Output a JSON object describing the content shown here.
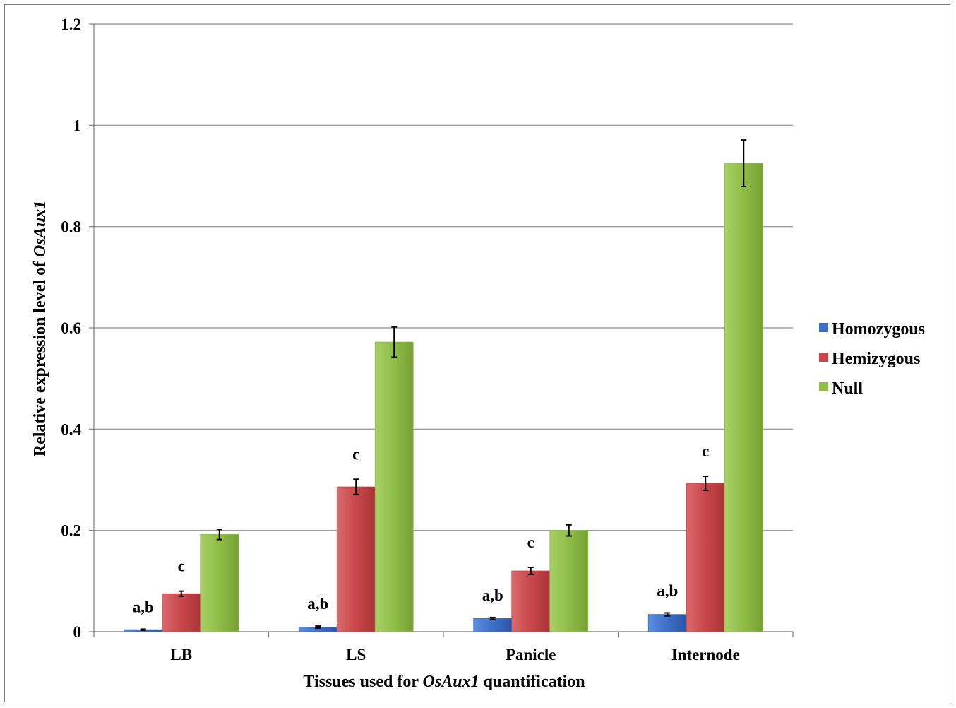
{
  "chart_data": {
    "type": "bar",
    "categories": [
      "LB",
      "LS",
      "Panicle",
      "Internode"
    ],
    "series": [
      {
        "name": "Homozygous",
        "color": "#3d6fc8",
        "values": [
          0.004,
          0.009,
          0.026,
          0.034
        ],
        "errors": [
          0.001,
          0.002,
          0.002,
          0.003
        ]
      },
      {
        "name": "Hemizygous",
        "color": "#c9474a",
        "values": [
          0.075,
          0.286,
          0.12,
          0.293
        ],
        "errors": [
          0.005,
          0.015,
          0.007,
          0.014
        ]
      },
      {
        "name": "Null",
        "color": "#8fbd48",
        "values": [
          0.192,
          0.572,
          0.2,
          0.925
        ],
        "errors": [
          0.01,
          0.03,
          0.011,
          0.046
        ]
      }
    ],
    "annotations": [
      [
        "a,b",
        "c"
      ],
      [
        "a,b",
        "c"
      ],
      [
        "a,b",
        "c"
      ],
      [
        "a,b",
        "c"
      ]
    ],
    "ylim": [
      0,
      1.2
    ],
    "yticks": [
      "0",
      "0.2",
      "0.4",
      "0.6",
      "0.8",
      "1",
      "1.2"
    ],
    "ytick_values": [
      0,
      0.2,
      0.4,
      0.6,
      0.8,
      1.0,
      1.2
    ],
    "ylabel_prefix": "Relative expression level of ",
    "ylabel_italic": "OsAux1",
    "xlabel_prefix": "Tissues used for ",
    "xlabel_italic": "OsAux1",
    "xlabel_suffix": " quantification",
    "grid": true,
    "legend_position": "right"
  }
}
